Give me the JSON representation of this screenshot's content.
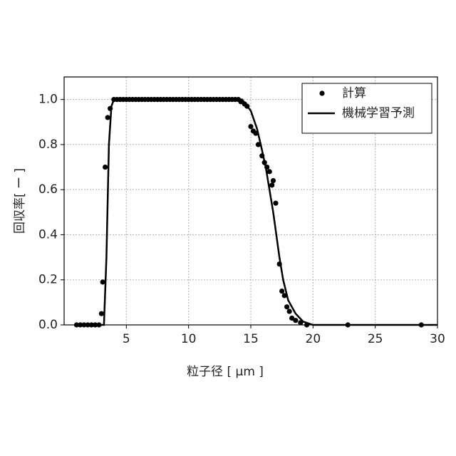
{
  "chart_data": {
    "type": "line",
    "x_label": "粒子径 [ μm ]",
    "y_label": "回収率[ ー ]",
    "xlim": [
      0,
      30
    ],
    "ylim": [
      0,
      1.1
    ],
    "xticks": [
      5,
      10,
      15,
      20,
      25,
      30
    ],
    "yticks": [
      {
        "value": 0,
        "label": "0.0"
      },
      0.2,
      0.4,
      0.6,
      0.8,
      {
        "value": 1,
        "label": "1.0"
      }
    ],
    "grid": true,
    "legend": "upper right",
    "series": [
      {
        "name": "計算",
        "color": "#000000",
        "style": "markers",
        "x": [
          1.0,
          1.3,
          1.6,
          1.9,
          2.2,
          2.5,
          2.8,
          3.0,
          3.1,
          3.3,
          3.5,
          3.7,
          4,
          4.25,
          4.5,
          4.75,
          5,
          5.25,
          5.5,
          5.75,
          6,
          6.25,
          6.5,
          6.75,
          7,
          7.25,
          7.5,
          7.75,
          8,
          8.25,
          8.5,
          8.75,
          9,
          9.25,
          9.5,
          9.75,
          10,
          10.25,
          10.5,
          10.75,
          11,
          11.25,
          11.5,
          11.75,
          12,
          12.25,
          12.5,
          12.75,
          13,
          13.25,
          13.5,
          13.75,
          14.0,
          14.2,
          14.5,
          14.7,
          15.0,
          15.2,
          15.4,
          15.6,
          15.9,
          16.1,
          16.3,
          16.5,
          16.7,
          16.8,
          17.0,
          17.3,
          17.5,
          17.7,
          17.9,
          18.1,
          18.3,
          18.6,
          19.0,
          19.5,
          22.8,
          28.7
        ],
        "values": [
          0,
          0,
          0,
          0,
          0,
          0,
          0,
          0.05,
          0.19,
          0.7,
          0.92,
          0.96,
          1,
          1,
          1,
          1,
          1,
          1,
          1,
          1,
          1,
          1,
          1,
          1,
          1,
          1,
          1,
          1,
          1,
          1,
          1,
          1,
          1,
          1,
          1,
          1,
          1,
          1,
          1,
          1,
          1,
          1,
          1,
          1,
          1,
          1,
          1,
          1,
          1,
          1,
          1,
          1,
          1.0,
          0.99,
          0.98,
          0.97,
          0.88,
          0.86,
          0.85,
          0.8,
          0.75,
          0.72,
          0.7,
          0.68,
          0.62,
          0.64,
          0.54,
          0.27,
          0.15,
          0.13,
          0.08,
          0.06,
          0.03,
          0.02,
          0.01,
          0,
          0,
          0
        ]
      },
      {
        "name": "機械学習予測",
        "color": "#000000",
        "style": "line",
        "x": [
          1,
          3.2,
          3.4,
          3.6,
          3.8,
          4.0,
          14.3,
          15.0,
          15.5,
          15.8,
          16.2,
          16.5,
          16.8,
          17.05,
          17.3,
          17.6,
          18.0,
          18.6,
          19.2,
          20,
          30
        ],
        "values": [
          0,
          0,
          0.3,
          0.8,
          0.97,
          1,
          1,
          0.95,
          0.87,
          0.8,
          0.7,
          0.6,
          0.5,
          0.4,
          0.3,
          0.2,
          0.11,
          0.05,
          0.015,
          0,
          0
        ]
      }
    ]
  }
}
